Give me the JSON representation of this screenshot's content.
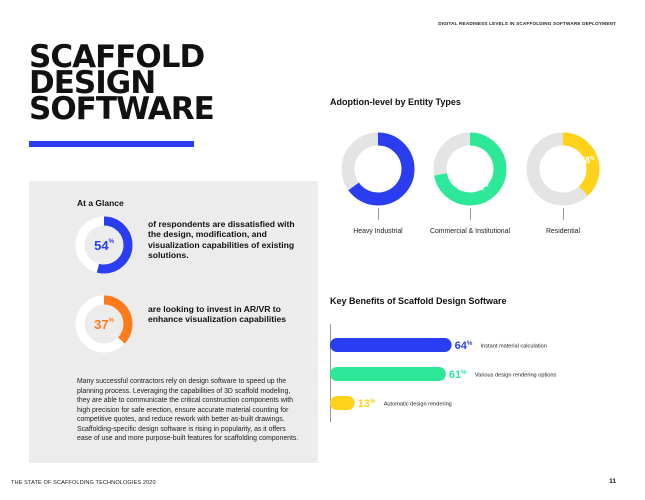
{
  "header": {
    "tag": "DIGITAL READINESS LEVELS IN SCAFFOLDING SOFTWARE DEPLOYMENT"
  },
  "title": {
    "line1": "SCAFFOLD",
    "line2": "DESIGN",
    "line3": "SOFTWARE"
  },
  "colors": {
    "blue": "#2b3df0",
    "green": "#2ee89a",
    "orange": "#ff7a1a",
    "yellow": "#ffd31a",
    "track": "#e4e4e4",
    "white_track": "#ffffff"
  },
  "glance": {
    "title": "At a Glance",
    "stats": [
      {
        "value": "54",
        "unit": "%",
        "fraction": 0.54,
        "color": "#2b3df0",
        "text": "of respondents are dissatisfied with the design, modification, and visualization capabilities of existing solutions."
      },
      {
        "value": "37",
        "unit": "%",
        "fraction": 0.37,
        "color": "#ff7a1a",
        "text": "are looking to invest in AR/VR to enhance visualization capabilities"
      }
    ],
    "body": "Many successful contractors rely on design software to speed up the planning process. Leveraging the capabilities of 3D scaffold modeling, they are able to communicate the critical construction components with high precision for safe erection, ensure accurate material counting for competitive quotes, and reduce rework with better as-built drawings. Scaffolding-specific design software is rising in popularity, as it offers ease of use and more purpose-built features for scaffolding components."
  },
  "adoption": {
    "title": "Adoption-level by Entity Types",
    "items": [
      {
        "label": "Heavy Industrial",
        "value": "65",
        "unit": "%",
        "fraction": 0.65,
        "color": "#2b3df0"
      },
      {
        "label": "Commercial & Institutional",
        "value": "72",
        "unit": "%",
        "fraction": 0.72,
        "color": "#2ee89a"
      },
      {
        "label": "Residential",
        "value": "38",
        "unit": "%",
        "fraction": 0.38,
        "color": "#ffd31a"
      }
    ]
  },
  "chart_data": {
    "type": "bar",
    "title": "Key Benefits of Scaffold Design Software",
    "orientation": "horizontal",
    "categories": [
      "Instant material calculation",
      "Various design rendering options",
      "Automatic design rendering"
    ],
    "values": [
      64,
      61,
      13
    ],
    "unit": "%",
    "colors": [
      "#2b3df0",
      "#2ee89a",
      "#ffd31a"
    ]
  },
  "footer": {
    "left": "THE STATE OF SCAFFOLDING TECHNOLOGIES 2020",
    "page": "11"
  }
}
